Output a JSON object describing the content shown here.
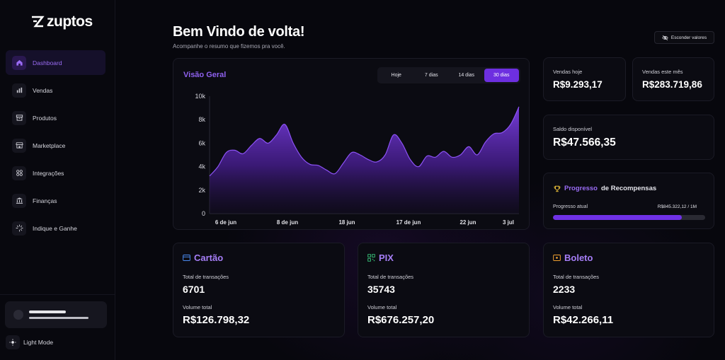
{
  "brand": {
    "name": "zuptos"
  },
  "sidebar": {
    "items": [
      {
        "label": "Dashboard",
        "icon": "home-icon",
        "active": true
      },
      {
        "label": "Vendas",
        "icon": "bar-chart-icon"
      },
      {
        "label": "Produtos",
        "icon": "box-icon"
      },
      {
        "label": "Marketplace",
        "icon": "store-icon"
      },
      {
        "label": "Integrações",
        "icon": "grid-icon"
      },
      {
        "label": "Finanças",
        "icon": "bank-icon"
      },
      {
        "label": "Indique e Ganhe",
        "icon": "sparkle-icon"
      }
    ],
    "light_mode": "Light Mode"
  },
  "header": {
    "title": "Bem Vindo de volta!",
    "subtitle": "Acompanhe o resumo que fizemos pra você.",
    "hide_values": "Esconder valores"
  },
  "overview": {
    "title": "Visão Geral",
    "tabs": [
      "Hoje",
      "7 dias",
      "14 dias",
      "30 dias"
    ],
    "active_tab": "30 dias"
  },
  "chart_data": {
    "type": "area",
    "title": "Visão Geral",
    "y_ticks": [
      "0",
      "2k",
      "4k",
      "6k",
      "8k",
      "10k"
    ],
    "x_ticks": [
      "6 de jun",
      "8 de jun",
      "18 jun",
      "17 de jun",
      "22 jun",
      "3 jul"
    ],
    "ylim": [
      0,
      10000
    ],
    "grid": false,
    "color": "#7b3fe4",
    "series": [
      {
        "values": [
          3200,
          4000,
          5200,
          5400,
          5100,
          5800,
          6400,
          6000,
          6700,
          7600,
          6000,
          4800,
          4200,
          4100,
          3700,
          3400,
          4300,
          5200,
          5000,
          4600,
          4400,
          5000,
          6700,
          6000,
          4600,
          4000,
          4900,
          4800,
          5300,
          4800,
          5000,
          5700,
          5000,
          6100,
          6800,
          6900,
          7600,
          9100
        ]
      }
    ]
  },
  "stats": {
    "vendas_hoje": {
      "label": "Vendas hoje",
      "value": "R$9.293,17"
    },
    "vendas_mes": {
      "label": "Vendas este mês",
      "value": "R$283.719,86"
    },
    "saldo": {
      "label": "Saldo disponível",
      "value": "R$47.566,35"
    }
  },
  "rewards": {
    "title_part1": "Progresso",
    "title_part2": "de Recompensas",
    "label": "Progresso atual",
    "value": "R$845.322,12 / 1M",
    "progress": 0.8453
  },
  "payments": {
    "cartao": {
      "name": "Cartão",
      "tx_label": "Total de transações",
      "tx": "6701",
      "vol_label": "Volume total",
      "vol": "R$126.798,32"
    },
    "pix": {
      "name": "PIX",
      "tx_label": "Total de transações",
      "tx": "35743",
      "vol_label": "Volume total",
      "vol": "R$676.257,20"
    },
    "boleto": {
      "name": "Boleto",
      "tx_label": "Total de transações",
      "tx": "2233",
      "vol_label": "Volume total",
      "vol": "R$42.266,11"
    }
  },
  "colors": {
    "accent": "#6d2fe0",
    "accent_text": "#8f61ef",
    "background": "#07070d"
  }
}
